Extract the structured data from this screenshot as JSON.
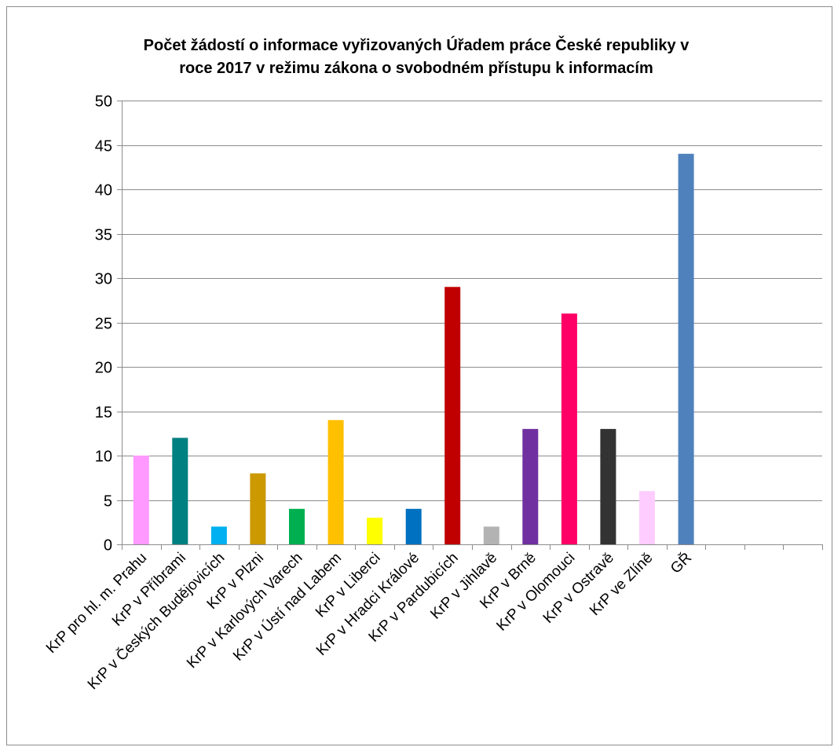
{
  "chart_data": {
    "type": "bar",
    "title": "Počet žádostí o informace vyřizovaných Úřadem práce České republiky v roce 2017 v režimu zákona o svobodném přístupu k informacím",
    "title_lines": [
      "Počet žádostí o informace vyřizovaných Úřadem práce České republiky v",
      "roce 2017 v režimu zákona o svobodném přístupu k informacím"
    ],
    "xlabel": "",
    "ylabel": "",
    "ylim": [
      0,
      50
    ],
    "yticks": [
      0,
      5,
      10,
      15,
      20,
      25,
      30,
      35,
      40,
      45,
      50
    ],
    "grid": true,
    "legend": "none",
    "categories": [
      "KrP pro hl. m. Prahu",
      "KrP v Příbrami",
      "KrP v Českých Budějovicích",
      "KrP v Plzni",
      "KrP v Karlových Varech",
      "KrP v Ústí nad Labem",
      "KrP v Liberci",
      "KrP v Hradci Králové",
      "KrP v Pardubicích",
      "KrP v Jihlavě",
      "KrP v Brně",
      "KrP v Olomouci",
      "KrP v Ostravě",
      "KrP ve Zlíně",
      "GŘ",
      "",
      "",
      ""
    ],
    "values": [
      10,
      12,
      2,
      8,
      4,
      14,
      3,
      4,
      29,
      2,
      13,
      26,
      13,
      6,
      44,
      null,
      null,
      null
    ],
    "colors": [
      "#ff99ff",
      "#008080",
      "#00b0f0",
      "#cc9900",
      "#00b050",
      "#ffc000",
      "#ffff00",
      "#0070c0",
      "#c00000",
      "#b3b3b3",
      "#7030a0",
      "#ff0066",
      "#333333",
      "#ffccff",
      "#4f81bd",
      "#ffffff",
      "#ffffff",
      "#ffffff"
    ]
  }
}
